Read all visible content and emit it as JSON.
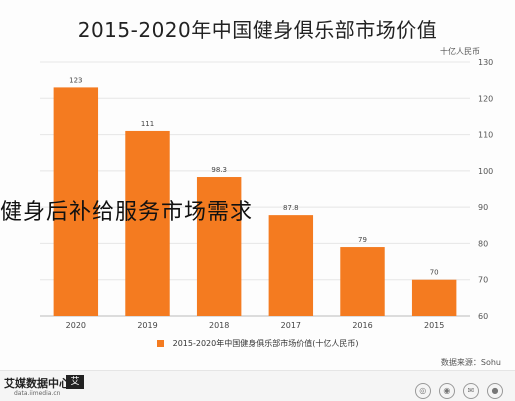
{
  "chart_data": {
    "type": "bar",
    "title": "2015-2020年中国健身俱乐部市场价值",
    "unit_label": "十亿人民币",
    "categories": [
      "2020",
      "2019",
      "2018",
      "2017",
      "2016",
      "2015"
    ],
    "series": [
      {
        "name": "2015-2020年中国健身俱乐部市场价值(十亿人民币)",
        "values": [
          123,
          111,
          98.3,
          87.8,
          79,
          70
        ]
      }
    ],
    "value_labels": [
      "123",
      "111",
      "98.3",
      "87.8",
      "79",
      "70"
    ],
    "ylim": [
      60,
      130
    ],
    "yticks": [
      "130",
      "120",
      "110",
      "100",
      "90",
      "80",
      "70",
      "60"
    ],
    "ytick_values": [
      130,
      120,
      110,
      100,
      90,
      80,
      70,
      60
    ],
    "y_axis_side": "right",
    "grid": true,
    "legend_position": "bottom",
    "bar_color": "#f47b20"
  },
  "source_text": "数据来源：Sohu",
  "overlay_caption": "健身后补给服务市场需求",
  "footer": {
    "brand_name": "艾媒数据中心",
    "brand_box": "艾",
    "brand_url": "data.iimedia.cn"
  },
  "social_icons": [
    "weibo-icon",
    "wechat-icon",
    "mail-icon",
    "user-icon"
  ]
}
